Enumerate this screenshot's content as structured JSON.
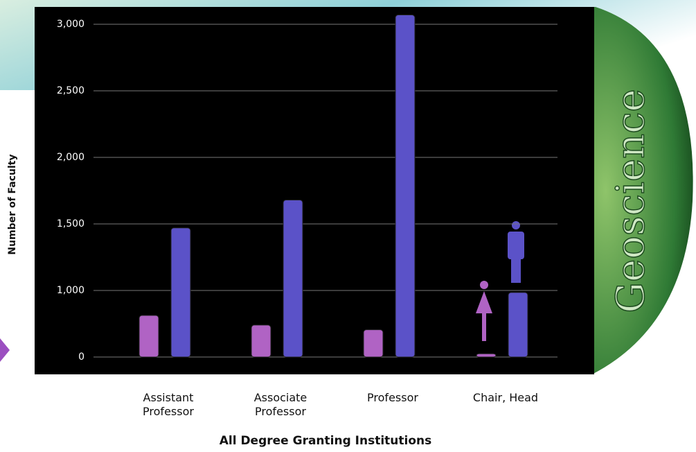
{
  "chart_data": {
    "type": "bar",
    "y_label": "Number of Faculty",
    "x_label": "All Degree Granting Institutions",
    "annotation": "Geoscience",
    "categories": [
      "Assistant Professor",
      "Associate Professor",
      "Professor",
      "Chair, Head"
    ],
    "series": [
      {
        "color": "#b063c4",
        "values": [
          625,
          480,
          410,
          50
        ]
      },
      {
        "color": "#5b52c8",
        "values": [
          1470,
          1680,
          3070,
          970
        ]
      }
    ],
    "ylim": [
      0,
      3000
    ],
    "yticks": [
      0,
      {
        "value": 1000,
        "label": "1,000"
      },
      {
        "value": 1500,
        "label": "1,500"
      },
      {
        "value": 2000,
        "label": "2,000"
      },
      {
        "value": 2500,
        "label": "2,500"
      },
      {
        "value": 3000,
        "label": "3,000"
      }
    ],
    "grid": true
  }
}
